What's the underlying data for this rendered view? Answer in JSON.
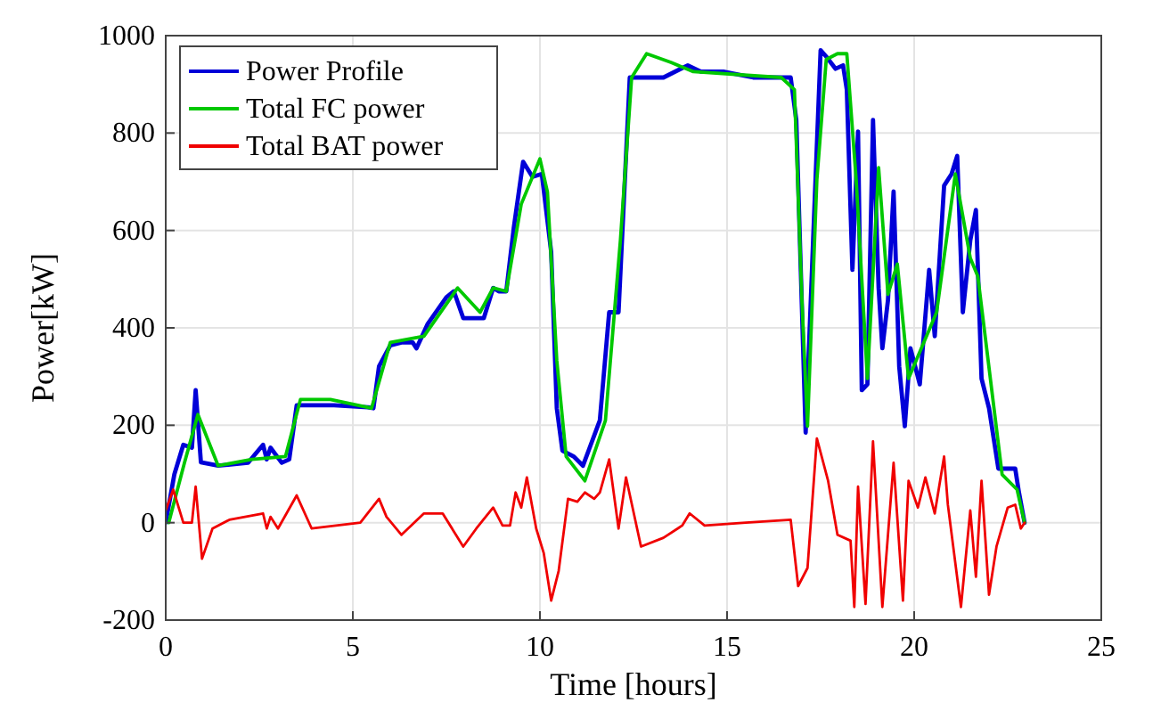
{
  "chart_data": {
    "type": "line",
    "xlabel": "Time [hours]",
    "ylabel": "Power[kW]",
    "xlim": [
      0,
      25
    ],
    "ylim": [
      -200,
      1000
    ],
    "xticks": [
      0,
      5,
      10,
      15,
      20,
      25
    ],
    "yticks": [
      -200,
      0,
      200,
      400,
      600,
      800,
      1000
    ],
    "grid": true,
    "legend": "top left",
    "line_style": "solid",
    "marker": "none",
    "series": [
      {
        "name": "Power Profile",
        "color": "#0000d8",
        "x": [
          0,
          0.23,
          0.47,
          0.7,
          0.8,
          0.94,
          1.4,
          2.2,
          2.6,
          2.7,
          2.8,
          3.1,
          3.3,
          3.5,
          3.9,
          4.5,
          5.4,
          5.55,
          5.7,
          6.0,
          6.3,
          6.6,
          6.7,
          7.0,
          7.5,
          7.7,
          7.95,
          8.5,
          8.75,
          8.9,
          9.1,
          9.3,
          9.55,
          9.8,
          10.05,
          10.3,
          10.45,
          10.6,
          10.9,
          11.15,
          11.3,
          11.6,
          11.85,
          12.1,
          12.4,
          12.7,
          13.3,
          13.95,
          14.3,
          14.9,
          15.7,
          16.7,
          16.85,
          17.1,
          17.3,
          17.5,
          17.65,
          17.9,
          18.1,
          18.2,
          18.35,
          18.5,
          18.6,
          18.75,
          18.9,
          19.05,
          19.15,
          19.3,
          19.45,
          19.6,
          19.75,
          19.9,
          20.15,
          20.4,
          20.55,
          20.8,
          21.0,
          21.15,
          21.3,
          21.5,
          21.65,
          21.8,
          22.0,
          22.25,
          22.7,
          22.8,
          22.95
        ],
        "values": [
          0,
          99,
          160,
          154,
          272,
          124,
          117,
          123,
          160,
          130,
          154,
          123,
          130,
          241,
          241,
          241,
          237,
          235,
          321,
          364,
          370,
          370,
          358,
          408,
          463,
          475,
          420,
          420,
          482,
          475,
          475,
          605,
          741,
          710,
          716,
          556,
          235,
          148,
          136,
          117,
          148,
          210,
          432,
          432,
          914,
          914,
          914,
          939,
          926,
          926,
          914,
          914,
          827,
          185,
          580,
          970,
          957,
          932,
          939,
          889,
          519,
          803,
          272,
          284,
          827,
          482,
          358,
          457,
          680,
          321,
          198,
          358,
          284,
          519,
          383,
          692,
          716,
          753,
          432,
          580,
          642,
          296,
          235,
          111,
          111,
          62,
          0
        ]
      },
      {
        "name": "Total FC power",
        "color": "#00c800",
        "x": [
          0.08,
          0.5,
          0.86,
          1.4,
          2.3,
          3.2,
          3.6,
          4.4,
          5.5,
          6.0,
          6.9,
          7.8,
          8.4,
          8.75,
          9.1,
          9.5,
          10.0,
          10.2,
          10.45,
          10.7,
          11.2,
          11.75,
          12.15,
          12.45,
          12.85,
          13.5,
          14.1,
          16.45,
          16.8,
          17.0,
          17.15,
          17.4,
          17.65,
          17.95,
          18.2,
          18.45,
          18.75,
          19.05,
          19.3,
          19.55,
          19.85,
          20.6,
          21.1,
          21.5,
          21.7,
          22.35,
          22.75,
          22.95
        ],
        "values": [
          0,
          123,
          222,
          117,
          130,
          136,
          253,
          253,
          235,
          370,
          383,
          482,
          432,
          482,
          475,
          654,
          747,
          679,
          333,
          136,
          86,
          210,
          580,
          914,
          963,
          945,
          926,
          914,
          889,
          457,
          198,
          704,
          951,
          963,
          963,
          704,
          296,
          729,
          469,
          531,
          296,
          432,
          716,
          543,
          506,
          99,
          68,
          0
        ]
      },
      {
        "name": "Total BAT power",
        "color": "#f00000",
        "x": [
          0,
          0.2,
          0.47,
          0.7,
          0.8,
          0.97,
          1.25,
          1.7,
          2.6,
          2.7,
          2.8,
          3.0,
          3.5,
          3.9,
          5.2,
          5.7,
          5.9,
          6.3,
          6.9,
          7.4,
          7.95,
          8.3,
          8.75,
          9.0,
          9.2,
          9.35,
          9.5,
          9.65,
          9.9,
          10.1,
          10.3,
          10.5,
          10.75,
          11.0,
          11.2,
          11.45,
          11.6,
          11.85,
          12.1,
          12.3,
          12.7,
          13.3,
          13.8,
          14.0,
          14.4,
          15.5,
          16.7,
          16.9,
          17.15,
          17.4,
          17.7,
          17.95,
          18.3,
          18.4,
          18.5,
          18.7,
          18.9,
          19.15,
          19.45,
          19.7,
          19.85,
          20.1,
          20.3,
          20.55,
          20.8,
          20.9,
          21.25,
          21.5,
          21.65,
          21.8,
          22.0,
          22.2,
          22.5,
          22.7,
          22.85,
          22.95
        ],
        "values": [
          25,
          68,
          0,
          0,
          74,
          -74,
          -12,
          6,
          19,
          -12,
          12,
          -12,
          56,
          -12,
          0,
          49,
          12,
          -25,
          19,
          19,
          -49,
          -12,
          31,
          -6,
          -6,
          62,
          31,
          93,
          -12,
          -62,
          -160,
          -99,
          49,
          43,
          62,
          49,
          62,
          130,
          -12,
          93,
          -49,
          -31,
          -6,
          19,
          -6,
          0,
          6,
          -130,
          -93,
          173,
          86,
          -25,
          -37,
          -173,
          74,
          -167,
          167,
          -173,
          123,
          -160,
          86,
          31,
          93,
          19,
          136,
          37,
          -173,
          25,
          -111,
          86,
          -148,
          -49,
          31,
          37,
          -12,
          0
        ]
      }
    ]
  }
}
